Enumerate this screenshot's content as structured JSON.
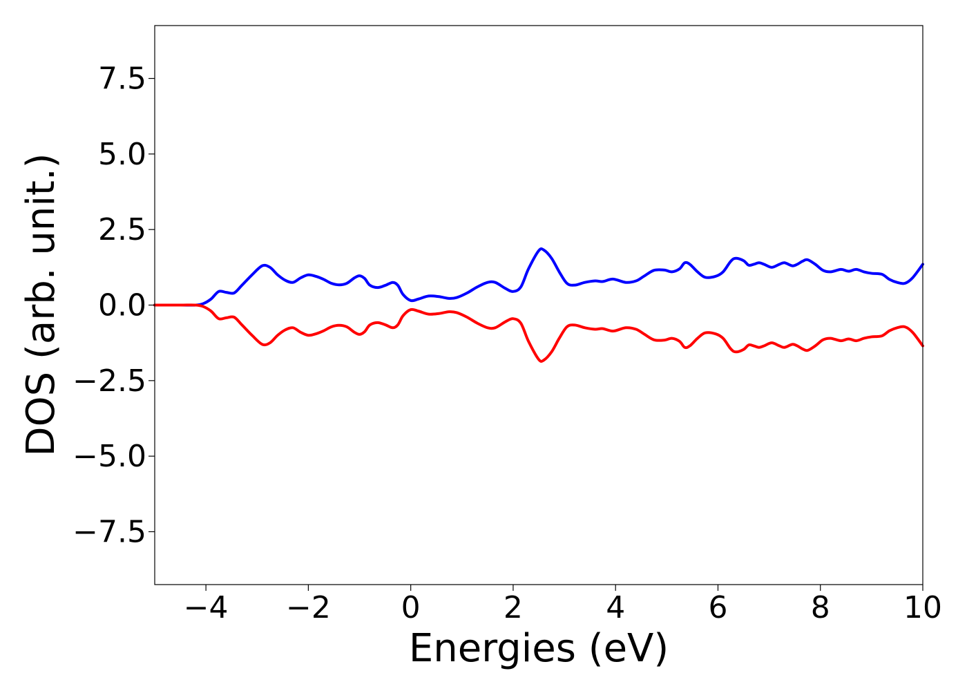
{
  "chart_data": {
    "type": "line",
    "title": "",
    "xlabel": "Energies (eV)",
    "ylabel": "DOS (arb. unit.)",
    "xlim": [
      -5,
      10
    ],
    "ylim": [
      -9.25,
      9.25
    ],
    "grid": false,
    "legend": "none",
    "x_ticks": [
      -4,
      -2,
      0,
      2,
      4,
      6,
      8,
      10
    ],
    "x_tick_labels": [
      "−4",
      "−2",
      "0",
      "2",
      "4",
      "6",
      "8",
      "10"
    ],
    "y_ticks": [
      7.5,
      5.0,
      2.5,
      0.0,
      -2.5,
      -5.0,
      -7.5
    ],
    "y_tick_labels": [
      "7.5",
      "5.0",
      "2.5",
      "0.0",
      "−2.5",
      "−5.0",
      "−7.5"
    ],
    "series": [
      {
        "color": "#0000ff",
        "x": [
          -5.0,
          -4.5,
          -4.2,
          -4.05,
          -3.9,
          -3.75,
          -3.6,
          -3.45,
          -3.3,
          -3.1,
          -2.9,
          -2.75,
          -2.6,
          -2.45,
          -2.3,
          -2.15,
          -2.0,
          -1.85,
          -1.7,
          -1.55,
          -1.4,
          -1.25,
          -1.1,
          -1.0,
          -0.9,
          -0.8,
          -0.65,
          -0.5,
          -0.35,
          -0.25,
          -0.15,
          0.0,
          0.15,
          0.35,
          0.55,
          0.75,
          0.9,
          1.1,
          1.3,
          1.5,
          1.65,
          1.85,
          2.0,
          2.15,
          2.3,
          2.5,
          2.6,
          2.75,
          2.9,
          3.05,
          3.2,
          3.4,
          3.6,
          3.75,
          3.95,
          4.2,
          4.4,
          4.55,
          4.75,
          4.95,
          5.1,
          5.25,
          5.35,
          5.45,
          5.6,
          5.75,
          5.95,
          6.1,
          6.25,
          6.35,
          6.5,
          6.6,
          6.7,
          6.8,
          6.9,
          7.05,
          7.2,
          7.3,
          7.45,
          7.55,
          7.65,
          7.75,
          7.9,
          8.05,
          8.2,
          8.4,
          8.55,
          8.7,
          8.85,
          9.0,
          9.2,
          9.35,
          9.5,
          9.65,
          9.8,
          10.0
        ],
        "y": [
          0.0,
          0.0,
          0.0,
          0.05,
          0.2,
          0.45,
          0.42,
          0.4,
          0.65,
          1.0,
          1.3,
          1.25,
          1.0,
          0.82,
          0.75,
          0.9,
          1.0,
          0.95,
          0.85,
          0.72,
          0.67,
          0.72,
          0.9,
          0.97,
          0.88,
          0.66,
          0.58,
          0.65,
          0.75,
          0.65,
          0.35,
          0.15,
          0.2,
          0.3,
          0.28,
          0.22,
          0.25,
          0.4,
          0.6,
          0.75,
          0.75,
          0.55,
          0.45,
          0.6,
          1.2,
          1.8,
          1.82,
          1.55,
          1.1,
          0.72,
          0.66,
          0.75,
          0.8,
          0.78,
          0.86,
          0.75,
          0.8,
          0.95,
          1.15,
          1.16,
          1.1,
          1.2,
          1.4,
          1.35,
          1.1,
          0.92,
          0.95,
          1.1,
          1.45,
          1.55,
          1.47,
          1.32,
          1.35,
          1.4,
          1.35,
          1.25,
          1.35,
          1.4,
          1.3,
          1.35,
          1.45,
          1.5,
          1.35,
          1.15,
          1.1,
          1.18,
          1.12,
          1.18,
          1.1,
          1.05,
          1.02,
          0.85,
          0.75,
          0.72,
          0.9,
          1.35
        ]
      },
      {
        "color": "#ff0000",
        "x": [
          -5.0,
          -4.5,
          -4.2,
          -4.05,
          -3.9,
          -3.75,
          -3.6,
          -3.45,
          -3.3,
          -3.1,
          -2.9,
          -2.75,
          -2.6,
          -2.45,
          -2.3,
          -2.15,
          -2.0,
          -1.85,
          -1.7,
          -1.55,
          -1.4,
          -1.25,
          -1.1,
          -1.0,
          -0.9,
          -0.8,
          -0.65,
          -0.5,
          -0.35,
          -0.25,
          -0.15,
          0.0,
          0.15,
          0.35,
          0.55,
          0.75,
          0.9,
          1.1,
          1.3,
          1.5,
          1.65,
          1.85,
          2.0,
          2.15,
          2.3,
          2.5,
          2.6,
          2.75,
          2.9,
          3.05,
          3.2,
          3.4,
          3.6,
          3.75,
          3.95,
          4.2,
          4.4,
          4.55,
          4.75,
          4.95,
          5.1,
          5.25,
          5.35,
          5.45,
          5.6,
          5.75,
          5.95,
          6.1,
          6.25,
          6.35,
          6.5,
          6.6,
          6.7,
          6.8,
          6.9,
          7.05,
          7.2,
          7.3,
          7.45,
          7.55,
          7.65,
          7.75,
          7.9,
          8.05,
          8.2,
          8.4,
          8.55,
          8.7,
          8.85,
          9.0,
          9.2,
          9.35,
          9.5,
          9.65,
          9.8,
          10.0
        ],
        "y": [
          0.0,
          0.0,
          0.0,
          -0.05,
          -0.2,
          -0.45,
          -0.42,
          -0.4,
          -0.65,
          -1.0,
          -1.3,
          -1.25,
          -1.0,
          -0.82,
          -0.75,
          -0.9,
          -1.0,
          -0.95,
          -0.85,
          -0.72,
          -0.67,
          -0.72,
          -0.9,
          -0.97,
          -0.88,
          -0.66,
          -0.58,
          -0.65,
          -0.75,
          -0.65,
          -0.35,
          -0.15,
          -0.2,
          -0.3,
          -0.28,
          -0.22,
          -0.25,
          -0.4,
          -0.6,
          -0.75,
          -0.75,
          -0.55,
          -0.45,
          -0.6,
          -1.2,
          -1.8,
          -1.82,
          -1.55,
          -1.1,
          -0.72,
          -0.66,
          -0.75,
          -0.8,
          -0.78,
          -0.86,
          -0.75,
          -0.8,
          -0.95,
          -1.15,
          -1.16,
          -1.1,
          -1.2,
          -1.4,
          -1.35,
          -1.1,
          -0.92,
          -0.95,
          -1.1,
          -1.45,
          -1.55,
          -1.47,
          -1.32,
          -1.35,
          -1.4,
          -1.35,
          -1.25,
          -1.35,
          -1.4,
          -1.3,
          -1.35,
          -1.45,
          -1.5,
          -1.35,
          -1.15,
          -1.1,
          -1.18,
          -1.12,
          -1.18,
          -1.1,
          -1.05,
          -1.02,
          -0.85,
          -0.75,
          -0.72,
          -0.9,
          -1.35
        ]
      }
    ]
  }
}
